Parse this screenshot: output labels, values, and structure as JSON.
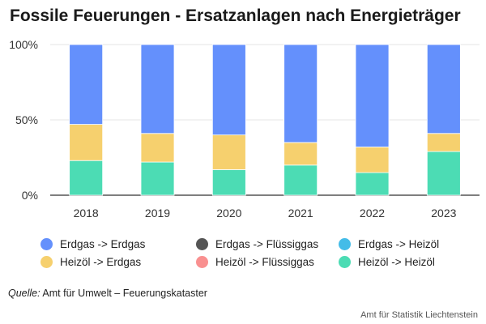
{
  "chart_data": {
    "type": "bar",
    "stacked": true,
    "title": "Fossile Feuerungen - Ersatzanlagen nach Energieträger",
    "categories": [
      "2018",
      "2019",
      "2020",
      "2021",
      "2022",
      "2023"
    ],
    "y_ticks": [
      "0%",
      "50%",
      "100%"
    ],
    "ylim": [
      0,
      100
    ],
    "grid": true,
    "legend_position": "bottom",
    "series": [
      {
        "name": "Heizöl -> Heizöl",
        "color": "#4cdcb4",
        "values": [
          23,
          22,
          17,
          20,
          15,
          29
        ]
      },
      {
        "name": "Heizöl -> Erdgas",
        "color": "#f6d06e",
        "values": [
          24,
          19,
          23,
          15,
          17,
          12
        ]
      },
      {
        "name": "Heizöl -> Flüssiggas",
        "color": "#f99090",
        "values": [
          0,
          0,
          0,
          0,
          0,
          0
        ]
      },
      {
        "name": "Erdgas -> Heizöl",
        "color": "#44bce8",
        "values": [
          0,
          0,
          0,
          0,
          0,
          0
        ]
      },
      {
        "name": "Erdgas -> Flüssiggas",
        "color": "#555555",
        "values": [
          0,
          0,
          0,
          0,
          0,
          0
        ]
      },
      {
        "name": "Erdgas -> Erdgas",
        "color": "#6490fc",
        "values": [
          53,
          59,
          60,
          65,
          68,
          59
        ]
      }
    ]
  },
  "legend": [
    {
      "label": "Erdgas -> Erdgas",
      "color": "#6490fc"
    },
    {
      "label": "Erdgas -> Flüssiggas",
      "color": "#555555"
    },
    {
      "label": "Erdgas -> Heizöl",
      "color": "#44bce8"
    },
    {
      "label": "Heizöl -> Erdgas",
      "color": "#f6d06e"
    },
    {
      "label": "Heizöl -> Flüssiggas",
      "color": "#f99090"
    },
    {
      "label": "Heizöl -> Heizöl",
      "color": "#4cdcb4"
    }
  ],
  "source": {
    "label": "Quelle:",
    "text": "Amt für Umwelt – Feuerungskataster"
  },
  "credit": "Amt für Statistik Liechtenstein"
}
